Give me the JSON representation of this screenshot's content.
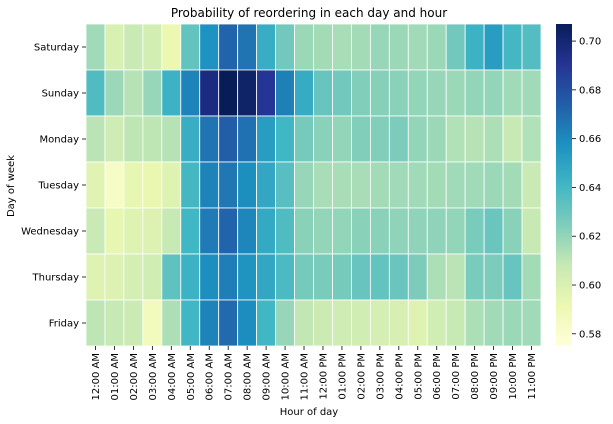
{
  "chart_data": {
    "type": "heatmap",
    "title": "Probability of reordering in each day and hour",
    "xlabel": "Hour of day",
    "ylabel": "Day of week",
    "x_categories": [
      "12:00 AM",
      "01:00 AM",
      "02:00 AM",
      "03:00 AM",
      "04:00 AM",
      "05:00 AM",
      "06:00 AM",
      "07:00 AM",
      "08:00 AM",
      "09:00 AM",
      "10:00 AM",
      "11:00 AM",
      "12:00 PM",
      "01:00 PM",
      "02:00 PM",
      "03:00 PM",
      "04:00 PM",
      "05:00 PM",
      "06:00 PM",
      "07:00 PM",
      "08:00 PM",
      "09:00 PM",
      "10:00 PM",
      "11:00 PM"
    ],
    "y_categories": [
      "Saturday",
      "Sunday",
      "Monday",
      "Tuesday",
      "Wednesday",
      "Thursday",
      "Friday"
    ],
    "values": [
      [
        0.617,
        0.6,
        0.607,
        0.603,
        0.592,
        0.632,
        0.657,
        0.672,
        0.667,
        0.645,
        0.628,
        0.618,
        0.616,
        0.615,
        0.616,
        0.619,
        0.618,
        0.617,
        0.618,
        0.628,
        0.643,
        0.652,
        0.64,
        0.636
      ],
      [
        0.637,
        0.618,
        0.612,
        0.619,
        0.643,
        0.662,
        0.696,
        0.707,
        0.703,
        0.69,
        0.663,
        0.646,
        0.631,
        0.628,
        0.624,
        0.623,
        0.622,
        0.62,
        0.619,
        0.618,
        0.62,
        0.62,
        0.617,
        0.617
      ],
      [
        0.611,
        0.605,
        0.61,
        0.61,
        0.612,
        0.645,
        0.667,
        0.674,
        0.668,
        0.652,
        0.641,
        0.627,
        0.622,
        0.62,
        0.624,
        0.624,
        0.625,
        0.62,
        0.618,
        0.613,
        0.612,
        0.614,
        0.608,
        0.613
      ],
      [
        0.597,
        0.583,
        0.594,
        0.593,
        0.598,
        0.64,
        0.662,
        0.666,
        0.658,
        0.648,
        0.635,
        0.619,
        0.615,
        0.615,
        0.615,
        0.616,
        0.617,
        0.617,
        0.616,
        0.617,
        0.617,
        0.618,
        0.616,
        0.607
      ],
      [
        0.607,
        0.594,
        0.598,
        0.599,
        0.608,
        0.641,
        0.665,
        0.672,
        0.661,
        0.647,
        0.637,
        0.622,
        0.62,
        0.62,
        0.622,
        0.622,
        0.621,
        0.621,
        0.621,
        0.62,
        0.626,
        0.63,
        0.622,
        0.608
      ],
      [
        0.598,
        0.599,
        0.602,
        0.604,
        0.633,
        0.643,
        0.658,
        0.664,
        0.656,
        0.648,
        0.638,
        0.627,
        0.626,
        0.627,
        0.631,
        0.632,
        0.63,
        0.625,
        0.614,
        0.611,
        0.626,
        0.625,
        0.631,
        0.616
      ],
      [
        0.61,
        0.608,
        0.606,
        0.586,
        0.614,
        0.641,
        0.662,
        0.67,
        0.659,
        0.641,
        0.619,
        0.609,
        0.606,
        0.605,
        0.604,
        0.602,
        0.601,
        0.598,
        0.604,
        0.608,
        0.614,
        0.617,
        0.618,
        0.617
      ]
    ],
    "colorbar": {
      "min": 0.575,
      "max": 0.707,
      "ticks": [
        "0.58",
        "0.60",
        "0.62",
        "0.64",
        "0.66",
        "0.68",
        "0.70"
      ],
      "tick_values": [
        0.58,
        0.6,
        0.62,
        0.64,
        0.66,
        0.68,
        0.7
      ],
      "colormap": "YlGnBu"
    },
    "grid": false,
    "cell_border_color": "#ffffff"
  }
}
